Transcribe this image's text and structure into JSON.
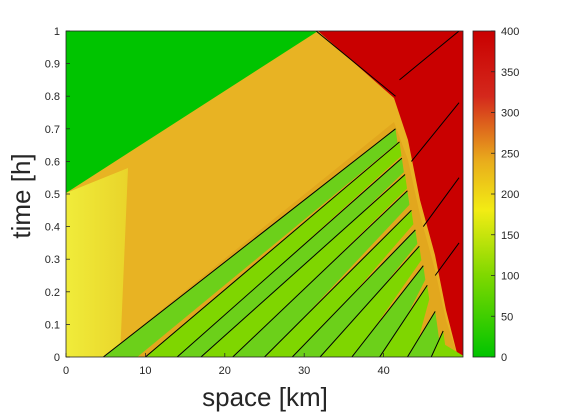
{
  "chart_data": {
    "type": "heatmap",
    "title": "",
    "xlabel": "space [km]",
    "ylabel": "time [h]",
    "xlim": [
      0,
      50
    ],
    "ylim": [
      0,
      1
    ],
    "x_ticks": [
      "0",
      "10",
      "20",
      "30",
      "40"
    ],
    "y_ticks": [
      "0",
      "0.1",
      "0.2",
      "0.3",
      "0.4",
      "0.5",
      "0.6",
      "0.7",
      "0.8",
      "0.9",
      "1"
    ],
    "colorbar": {
      "min": 0,
      "max": 400,
      "ticks": [
        "0",
        "50",
        "100",
        "150",
        "200",
        "250",
        "300",
        "350",
        "400"
      ],
      "colors": [
        "#00c400",
        "#7fd800",
        "#f2ec14",
        "#e9ad1c",
        "#d4281c",
        "#c90000"
      ]
    },
    "regions": [
      {
        "region": "upper-left",
        "value": 20
      },
      {
        "region": "middle band",
        "value": 220
      },
      {
        "region": "lower-left",
        "value": 170
      },
      {
        "region": "upper-right",
        "value": 375
      },
      {
        "region": "stop-and-go waves",
        "values": [
          70,
          230
        ]
      }
    ],
    "shock_fronts": [
      {
        "x": [
          31.5,
          41.5
        ],
        "y": [
          1.0,
          0.8
        ]
      },
      {
        "x": [
          4.7,
          41.5
        ],
        "y": [
          0.0,
          0.7
        ]
      },
      {
        "x": [
          10.0,
          42.0
        ],
        "y": [
          0.0,
          0.66
        ]
      },
      {
        "x": [
          14.0,
          42.3
        ],
        "y": [
          0.0,
          0.61
        ]
      },
      {
        "x": [
          17.0,
          42.7
        ],
        "y": [
          0.0,
          0.56
        ]
      },
      {
        "x": [
          21.0,
          43.0
        ],
        "y": [
          0.0,
          0.51
        ]
      },
      {
        "x": [
          25.0,
          43.5
        ],
        "y": [
          0.0,
          0.45
        ]
      },
      {
        "x": [
          28.5,
          44.0
        ],
        "y": [
          0.0,
          0.39
        ]
      },
      {
        "x": [
          32.0,
          44.5
        ],
        "y": [
          0.0,
          0.34
        ]
      },
      {
        "x": [
          36.0,
          45.0
        ],
        "y": [
          0.0,
          0.28
        ]
      },
      {
        "x": [
          39.5,
          45.5
        ],
        "y": [
          0.0,
          0.22
        ]
      },
      {
        "x": [
          43.0,
          46.5
        ],
        "y": [
          0.0,
          0.14
        ]
      },
      {
        "x": [
          46.0,
          47.5
        ],
        "y": [
          0.0,
          0.08
        ]
      },
      {
        "x": [
          42.0,
          49.5
        ],
        "y": [
          0.85,
          1.0
        ]
      },
      {
        "x": [
          43.5,
          49.5
        ],
        "y": [
          0.6,
          0.78
        ]
      },
      {
        "x": [
          45.0,
          49.5
        ],
        "y": [
          0.4,
          0.55
        ]
      },
      {
        "x": [
          46.5,
          49.5
        ],
        "y": [
          0.25,
          0.35
        ]
      }
    ]
  }
}
